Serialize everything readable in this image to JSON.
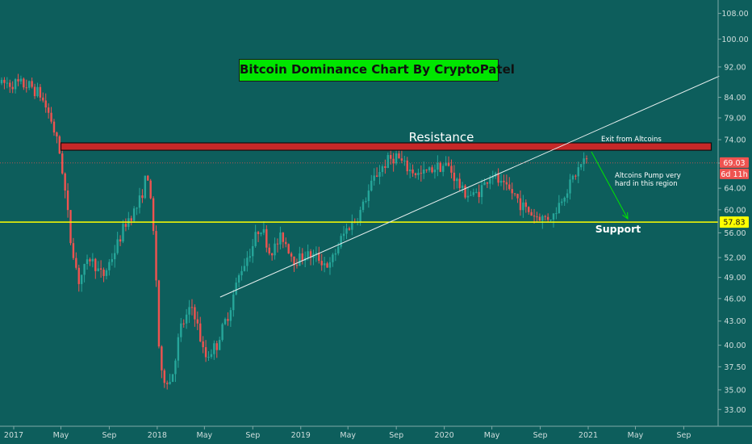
{
  "title": "Bitcoin Dominance Chart By CryptoPatel",
  "chart_data": {
    "type": "candlestick",
    "title": "Bitcoin Dominance Chart By CryptoPatel",
    "y_ticks": [
      "108.00",
      "100.00",
      "92.00",
      "84.00",
      "79.00",
      "74.00",
      "69.00",
      "64.00",
      "60.00",
      "56.00",
      "52.00",
      "49.00",
      "46.00",
      "43.00",
      "40.00",
      "37.50",
      "35.00",
      "33.00"
    ],
    "x_ticks": [
      "2017",
      "May",
      "Sep",
      "2018",
      "May",
      "Sep",
      "2019",
      "May",
      "Sep",
      "2020",
      "May",
      "Sep",
      "2021",
      "May",
      "Sep"
    ],
    "x_range": [
      "2017-01",
      "2021-11"
    ],
    "y_range": [
      31.6,
      112
    ],
    "price_axis": "right",
    "last_price": "69.03",
    "countdown": "6d 11h",
    "support_price": "57.83",
    "series": [
      {
        "t": "2017-01-01",
        "close": 87.6
      },
      {
        "t": "2017-02-15",
        "close": 86.8
      },
      {
        "t": "2017-03-10",
        "close": 84.5
      },
      {
        "t": "2017-04-05",
        "close": 79.0
      },
      {
        "t": "2017-05-01",
        "close": 70.0
      },
      {
        "t": "2017-05-25",
        "close": 55.0
      },
      {
        "t": "2017-06-15",
        "close": 48.5
      },
      {
        "t": "2017-07-15",
        "close": 52.0
      },
      {
        "t": "2017-08-15",
        "close": 49.0
      },
      {
        "t": "2017-09-15",
        "close": 53.0
      },
      {
        "t": "2017-10-15",
        "close": 58.0
      },
      {
        "t": "2017-11-15",
        "close": 61.0
      },
      {
        "t": "2017-12-07",
        "close": 67.0
      },
      {
        "t": "2017-12-25",
        "close": 54.0
      },
      {
        "t": "2018-01-08",
        "close": 36.5
      },
      {
        "t": "2018-02-05",
        "close": 35.8
      },
      {
        "t": "2018-03-01",
        "close": 42.0
      },
      {
        "t": "2018-04-01",
        "close": 45.0
      },
      {
        "t": "2018-05-01",
        "close": 38.5
      },
      {
        "t": "2018-06-01",
        "close": 40.0
      },
      {
        "t": "2018-07-01",
        "close": 44.0
      },
      {
        "t": "2018-08-01",
        "close": 50.0
      },
      {
        "t": "2018-09-01",
        "close": 54.0
      },
      {
        "t": "2018-09-20",
        "close": 57.5
      },
      {
        "t": "2018-10-15",
        "close": 52.5
      },
      {
        "t": "2018-11-15",
        "close": 55.5
      },
      {
        "t": "2018-12-15",
        "close": 51.5
      },
      {
        "t": "2019-01-15",
        "close": 52.5
      },
      {
        "t": "2019-02-15",
        "close": 52.0
      },
      {
        "t": "2019-03-15",
        "close": 50.5
      },
      {
        "t": "2019-04-10",
        "close": 54.5
      },
      {
        "t": "2019-05-01",
        "close": 57.0
      },
      {
        "t": "2019-05-25",
        "close": 58.5
      },
      {
        "t": "2019-06-15",
        "close": 62.0
      },
      {
        "t": "2019-07-10",
        "close": 66.5
      },
      {
        "t": "2019-08-10",
        "close": 69.5
      },
      {
        "t": "2019-09-01",
        "close": 70.5
      },
      {
        "t": "2019-09-25",
        "close": 68.0
      },
      {
        "t": "2019-11-01",
        "close": 66.5
      },
      {
        "t": "2019-12-15",
        "close": 68.5
      },
      {
        "t": "2020-01-10",
        "close": 68.5
      },
      {
        "t": "2020-02-15",
        "close": 63.5
      },
      {
        "t": "2020-03-15",
        "close": 62.5
      },
      {
        "t": "2020-04-10",
        "close": 64.5
      },
      {
        "t": "2020-05-01",
        "close": 67.0
      },
      {
        "t": "2020-05-25",
        "close": 64.5
      },
      {
        "t": "2020-06-25",
        "close": 63.0
      },
      {
        "t": "2020-07-20",
        "close": 60.5
      },
      {
        "t": "2020-08-15",
        "close": 59.0
      },
      {
        "t": "2020-09-10",
        "close": 58.5
      },
      {
        "t": "2020-10-05",
        "close": 59.0
      },
      {
        "t": "2020-10-25",
        "close": 62.0
      },
      {
        "t": "2020-11-20",
        "close": 65.5
      },
      {
        "t": "2020-12-20",
        "close": 69.5
      },
      {
        "t": "2021-01-03",
        "close": 69.0
      }
    ],
    "annotations": {
      "resistance_label": "Resistance",
      "support_label": "Support",
      "exit_label": "Exit from Altcoins",
      "pump_label_1": "Altcoins Pump very",
      "pump_label_2": "hard in this region"
    },
    "drawings": {
      "resistance_zone": {
        "from": "2017-05-01",
        "to": "2021-11-10",
        "low": 71.7,
        "high": 73.3
      },
      "support_line": {
        "value": 57.83
      },
      "trendline": {
        "from": [
          "2018-06-10",
          46.2
        ],
        "to": [
          "2021-11-30",
          89.5
        ]
      }
    },
    "grid": false,
    "colors": {
      "background": "#0d5e5c",
      "up": "#26a69a",
      "down": "#ef5350",
      "resistance_fill": "#c62828",
      "support": "#ffff00",
      "arrow": "#00e600",
      "title_bg": "#00e600",
      "trendline": "#e8f0f0"
    }
  }
}
